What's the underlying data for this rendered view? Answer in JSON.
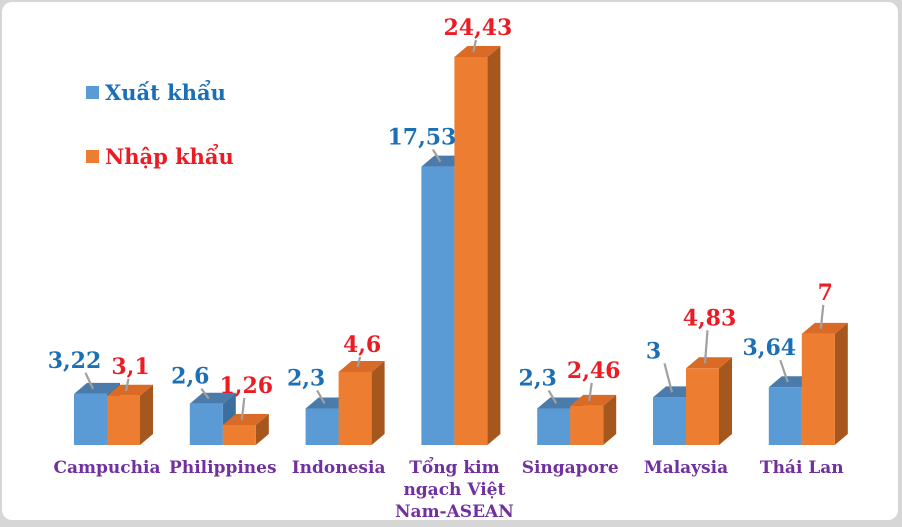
{
  "chart_data": {
    "type": "bar",
    "style": "3d-clustered-column",
    "title": "",
    "xlabel": "",
    "ylabel": "",
    "axes_visible": false,
    "grid": false,
    "legend_position": "top-left",
    "categories": [
      "Campuchia",
      "Philippines",
      "Indonesia",
      "Tổng kim ngạch Việt Nam-ASEAN",
      "Singapore",
      "Malaysia",
      "Thái Lan"
    ],
    "category_display_lines": [
      [
        "Campuchia"
      ],
      [
        "Philippines"
      ],
      [
        "Indonesia"
      ],
      [
        "Tổng kim",
        "ngạch Việt",
        "Nam-ASEAN"
      ],
      [
        "Singapore"
      ],
      [
        "Malaysia"
      ],
      [
        "Thái Lan"
      ]
    ],
    "series": [
      {
        "name": "Xuất khẩu",
        "values": [
          3.22,
          2.6,
          2.3,
          17.53,
          2.3,
          3,
          3.64
        ],
        "value_labels": [
          "3,22",
          "2,6",
          "2,3",
          "17,53",
          "2,3",
          "3",
          "3,64"
        ],
        "bar_color_front": "#5B9BD5",
        "bar_color_top": "#4A7BAB",
        "bar_color_side": "#3E6E9E",
        "label_color": "#1B6FB5"
      },
      {
        "name": "Nhập khẩu",
        "values": [
          3.1,
          1.26,
          4.6,
          24.43,
          2.46,
          4.83,
          7
        ],
        "value_labels": [
          "3,1",
          "1,26",
          "4,6",
          "24,43",
          "2,46",
          "4,83",
          "7"
        ],
        "bar_color_front": "#ED7D31",
        "bar_color_top": "#D96B27",
        "bar_color_side": "#A6571E",
        "label_color": "#EC1C24"
      }
    ],
    "category_label_color": "#7030A0",
    "leader_line_color": "#A0A0A0",
    "value_range_implied": [
      0,
      24.43
    ]
  }
}
